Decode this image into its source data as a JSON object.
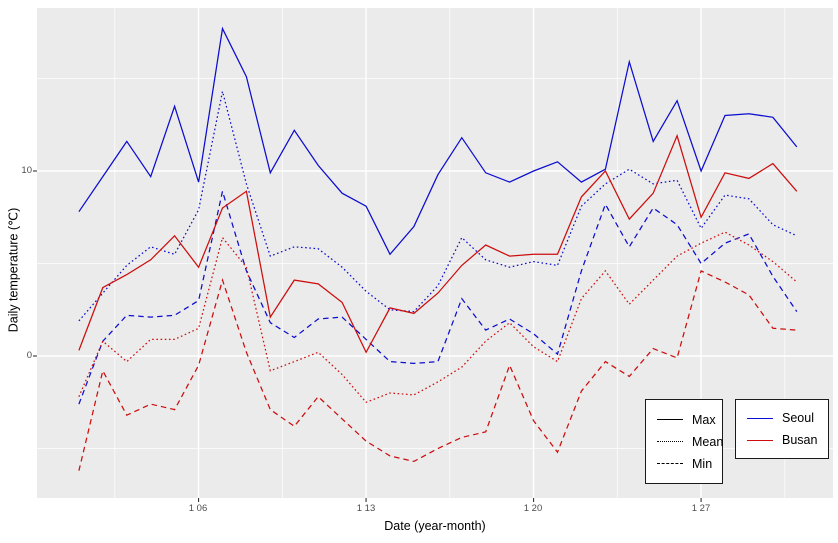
{
  "app": {
    "background": "#ffffff",
    "panel_bg": "#ebebeb",
    "grid_color": "#ffffff",
    "tick_mark_color": "#333333",
    "tick_label_color": "#4d4d4d",
    "seoul_color": "#0d0dcf",
    "busan_color": "#cd0d0d"
  },
  "chart_data": {
    "type": "line",
    "title": "",
    "xlabel": "Date (year-month)",
    "ylabel": "Daily temperature (℃)",
    "x_unit": "day of month 1 (January), days 1-31",
    "x": [
      1,
      2,
      3,
      4,
      5,
      6,
      7,
      8,
      9,
      10,
      11,
      12,
      13,
      14,
      15,
      16,
      17,
      18,
      19,
      20,
      21,
      22,
      23,
      24,
      25,
      26,
      27,
      28,
      29,
      30,
      31
    ],
    "x_axis": {
      "major_ticks": [
        {
          "value": 6,
          "label": "1 06"
        },
        {
          "value": 13,
          "label": "1 13"
        },
        {
          "value": 20,
          "label": "1 20"
        },
        {
          "value": 27,
          "label": "1 27"
        }
      ],
      "minor_ticks": [
        2.5,
        9.5,
        16.5,
        23.5,
        30.5
      ],
      "range": [
        0.25,
        32.5
      ]
    },
    "y_axis": {
      "major_ticks": [
        {
          "value": 0,
          "label": "0"
        },
        {
          "value": 10,
          "label": "10"
        }
      ],
      "minor_ticks": [
        -5,
        5,
        15
      ],
      "range": [
        -7.6,
        18.8
      ]
    },
    "grid": true,
    "legend_position": "inside bottom-right, two boxes",
    "series": [
      {
        "city": "Seoul",
        "stat": "Max",
        "color": "#0d0dcf",
        "linetype": "solid",
        "values": [
          7.8,
          9.7,
          11.6,
          9.7,
          13.5,
          9.4,
          17.7,
          15.1,
          9.9,
          12.2,
          10.3,
          8.8,
          8.1,
          5.5,
          7.0,
          9.8,
          11.8,
          9.9,
          9.4,
          10.0,
          10.5,
          9.4,
          10.1,
          15.9,
          11.6,
          13.8,
          10.0,
          13.0,
          13.1,
          12.9,
          11.3
        ]
      },
      {
        "city": "Seoul",
        "stat": "Mean",
        "color": "#0d0dcf",
        "linetype": "dotted",
        "values": [
          1.9,
          3.4,
          4.9,
          5.9,
          5.5,
          7.9,
          14.3,
          9.3,
          5.4,
          5.9,
          5.8,
          4.8,
          3.5,
          2.5,
          2.4,
          3.8,
          6.4,
          5.2,
          4.8,
          5.1,
          4.9,
          8.1,
          9.3,
          10.1,
          9.3,
          9.5,
          6.9,
          8.7,
          8.5,
          7.1,
          6.5
        ]
      },
      {
        "city": "Seoul",
        "stat": "Min",
        "color": "#0d0dcf",
        "linetype": "dashed",
        "values": [
          -2.6,
          0.8,
          2.2,
          2.1,
          2.2,
          3.0,
          8.9,
          4.6,
          1.8,
          1.0,
          2.0,
          2.1,
          0.9,
          -0.3,
          -0.4,
          -0.3,
          3.1,
          1.4,
          2.0,
          1.2,
          0.1,
          4.6,
          8.2,
          5.9,
          8.0,
          7.1,
          5.0,
          6.1,
          6.6,
          4.3,
          2.4
        ]
      },
      {
        "city": "Busan",
        "stat": "Max",
        "color": "#cd0d0d",
        "linetype": "solid",
        "values": [
          0.3,
          3.7,
          4.4,
          5.2,
          6.5,
          4.8,
          8.0,
          8.9,
          2.1,
          4.1,
          3.9,
          2.9,
          0.2,
          2.6,
          2.3,
          3.4,
          4.9,
          6.0,
          5.4,
          5.5,
          5.5,
          8.6,
          10.0,
          7.4,
          8.8,
          11.9,
          7.5,
          9.9,
          9.6,
          10.4,
          8.9
        ]
      },
      {
        "city": "Busan",
        "stat": "Mean",
        "color": "#cd0d0d",
        "linetype": "dotted",
        "values": [
          -2.2,
          0.8,
          -0.3,
          0.9,
          0.9,
          1.5,
          6.4,
          4.8,
          -0.8,
          -0.3,
          0.2,
          -1.0,
          -2.5,
          -2.0,
          -2.1,
          -1.4,
          -0.6,
          0.8,
          1.8,
          0.5,
          -0.3,
          3.1,
          4.6,
          2.8,
          4.1,
          5.4,
          6.1,
          6.7,
          6.0,
          5.1,
          4.0
        ]
      },
      {
        "city": "Busan",
        "stat": "Min",
        "color": "#cd0d0d",
        "linetype": "dashed",
        "values": [
          -6.2,
          -0.8,
          -3.2,
          -2.6,
          -2.9,
          -0.5,
          4.1,
          0.2,
          -2.9,
          -3.8,
          -2.2,
          -3.4,
          -4.6,
          -5.4,
          -5.7,
          -5.0,
          -4.4,
          -4.1,
          -0.5,
          -3.5,
          -5.2,
          -1.9,
          -0.3,
          -1.1,
          0.4,
          -0.1,
          4.6,
          4.0,
          3.3,
          1.5,
          1.4
        ]
      }
    ],
    "legend_linetype": {
      "entries": [
        {
          "label": "Max",
          "linetype": "solid"
        },
        {
          "label": "Mean",
          "linetype": "dotted"
        },
        {
          "label": "Min",
          "linetype": "dashed"
        }
      ]
    },
    "legend_color": {
      "entries": [
        {
          "label": "Seoul",
          "color": "#0d0dcf"
        },
        {
          "label": "Busan",
          "color": "#cd0d0d"
        }
      ]
    }
  }
}
